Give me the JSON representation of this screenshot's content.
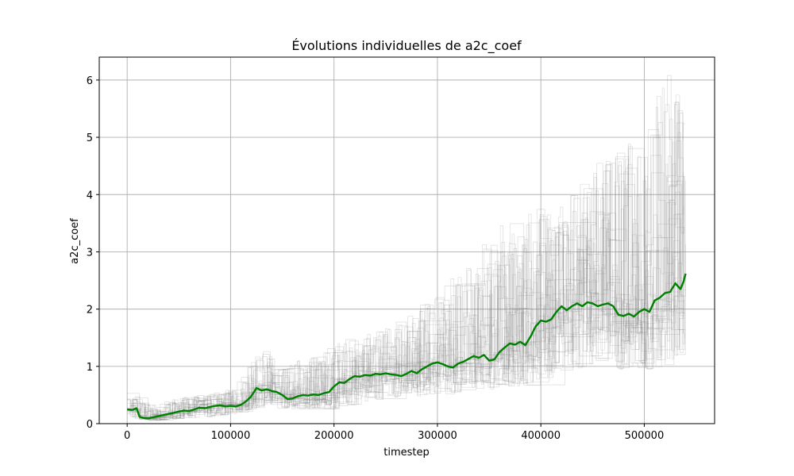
{
  "chart_data": {
    "type": "line",
    "title": "Évolutions individuelles de a2c_coef",
    "xlabel": "timestep",
    "ylabel": "a2c_coef",
    "xlim": [
      -27000,
      568000
    ],
    "ylim": [
      0,
      6.4
    ],
    "x_ticks": [
      0,
      100000,
      200000,
      300000,
      400000,
      500000
    ],
    "x_tick_labels": [
      "0",
      "100000",
      "200000",
      "300000",
      "400000",
      "500000"
    ],
    "y_ticks": [
      0,
      1,
      2,
      3,
      4,
      5,
      6
    ],
    "y_tick_labels": [
      "0",
      "1",
      "2",
      "3",
      "4",
      "5",
      "6"
    ],
    "grid": true,
    "legend": "none",
    "colors": {
      "mean": "#008000",
      "individual": "#808080",
      "grid": "#b0b0b0"
    },
    "series": [
      {
        "role": "mean",
        "x": [
          0,
          5000,
          9000,
          12000,
          16000,
          20000,
          25000,
          30000,
          35000,
          40000,
          45000,
          50000,
          55000,
          60000,
          65000,
          70000,
          75000,
          80000,
          85000,
          90000,
          95000,
          100000,
          105000,
          110000,
          115000,
          120000,
          125000,
          130000,
          135000,
          140000,
          145000,
          150000,
          155000,
          160000,
          165000,
          170000,
          175000,
          180000,
          185000,
          190000,
          195000,
          200000,
          205000,
          210000,
          215000,
          220000,
          225000,
          230000,
          235000,
          240000,
          245000,
          250000,
          255000,
          260000,
          265000,
          270000,
          275000,
          280000,
          285000,
          290000,
          295000,
          300000,
          305000,
          310000,
          315000,
          320000,
          325000,
          330000,
          335000,
          340000,
          345000,
          350000,
          355000,
          360000,
          365000,
          370000,
          375000,
          380000,
          385000,
          390000,
          395000,
          400000,
          405000,
          410000,
          415000,
          420000,
          425000,
          430000,
          435000,
          440000,
          445000,
          450000,
          455000,
          460000,
          465000,
          470000,
          475000,
          480000,
          485000,
          490000,
          495000,
          500000,
          505000,
          510000,
          515000,
          520000,
          525000,
          530000,
          535000,
          538000,
          540000
        ],
        "y": [
          0.25,
          0.24,
          0.27,
          0.12,
          0.1,
          0.09,
          0.11,
          0.13,
          0.15,
          0.17,
          0.19,
          0.21,
          0.23,
          0.22,
          0.25,
          0.28,
          0.27,
          0.29,
          0.31,
          0.32,
          0.3,
          0.31,
          0.3,
          0.33,
          0.39,
          0.48,
          0.62,
          0.58,
          0.6,
          0.57,
          0.55,
          0.5,
          0.43,
          0.44,
          0.48,
          0.5,
          0.49,
          0.51,
          0.5,
          0.53,
          0.55,
          0.65,
          0.72,
          0.71,
          0.78,
          0.83,
          0.82,
          0.85,
          0.84,
          0.87,
          0.86,
          0.88,
          0.86,
          0.85,
          0.83,
          0.87,
          0.92,
          0.88,
          0.95,
          1.0,
          1.05,
          1.07,
          1.04,
          1.0,
          0.98,
          1.05,
          1.08,
          1.13,
          1.18,
          1.15,
          1.2,
          1.1,
          1.12,
          1.25,
          1.33,
          1.4,
          1.38,
          1.43,
          1.37,
          1.52,
          1.7,
          1.8,
          1.78,
          1.82,
          1.95,
          2.05,
          1.98,
          2.05,
          2.1,
          2.05,
          2.12,
          2.1,
          2.05,
          2.08,
          2.1,
          2.05,
          1.9,
          1.88,
          1.92,
          1.87,
          1.95,
          2.0,
          1.95,
          2.15,
          2.2,
          2.28,
          2.3,
          2.45,
          2.35,
          2.48,
          2.62
        ]
      }
    ],
    "individual_runs_count": 30,
    "individual_envelope": {
      "x": [
        0,
        20000,
        50000,
        100000,
        130000,
        150000,
        200000,
        250000,
        300000,
        350000,
        400000,
        420000,
        450000,
        500000,
        520000,
        540000
      ],
      "low": [
        0.1,
        0.05,
        0.08,
        0.15,
        0.3,
        0.25,
        0.25,
        0.45,
        0.5,
        0.6,
        0.7,
        0.9,
        1.0,
        0.9,
        1.0,
        1.3
      ],
      "high": [
        0.6,
        0.3,
        0.45,
        0.6,
        1.3,
        1.0,
        1.4,
        1.7,
        2.3,
        3.4,
        3.8,
        3.85,
        4.5,
        5.3,
        6.35,
        5.3
      ]
    }
  }
}
